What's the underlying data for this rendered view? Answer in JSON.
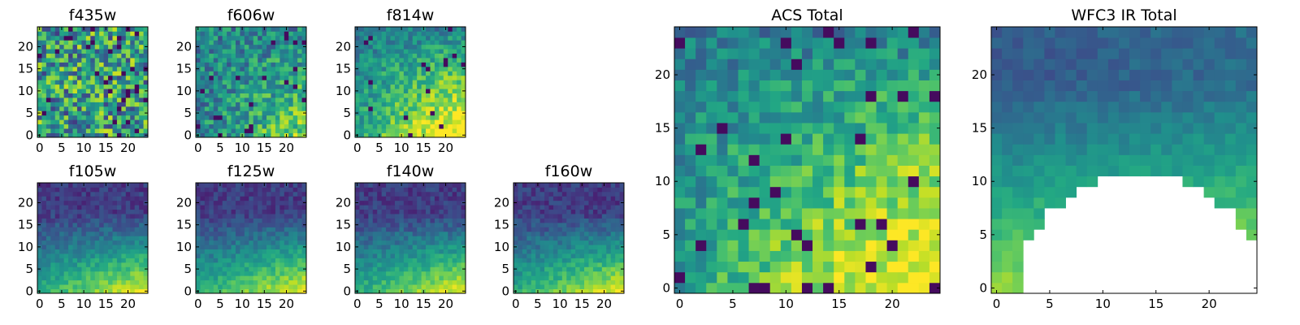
{
  "chart_data": [
    {
      "type": "heatmap",
      "title": "f435w",
      "grid": [
        25,
        25
      ],
      "xlim": [
        0,
        25
      ],
      "ylim": [
        0,
        25
      ],
      "xticks": [
        0,
        5,
        10,
        15,
        20
      ],
      "yticks": [
        0,
        5,
        10,
        15,
        20
      ],
      "colormap": "viridis",
      "pattern": "noisy"
    },
    {
      "type": "heatmap",
      "title": "f606w",
      "grid": [
        25,
        25
      ],
      "xlim": [
        0,
        25
      ],
      "ylim": [
        0,
        25
      ],
      "xticks": [
        0,
        5,
        10,
        15,
        20
      ],
      "yticks": [
        0,
        5,
        10,
        15,
        20
      ],
      "colormap": "viridis",
      "pattern": "noisy-bright-bottom-right"
    },
    {
      "type": "heatmap",
      "title": "f814w",
      "grid": [
        25,
        25
      ],
      "xlim": [
        0,
        25
      ],
      "ylim": [
        0,
        25
      ],
      "xticks": [
        0,
        5,
        10,
        15,
        20
      ],
      "yticks": [
        0,
        5,
        10,
        15,
        20
      ],
      "colormap": "viridis",
      "pattern": "bright-bottom-right"
    },
    {
      "type": "heatmap",
      "title": "f105w",
      "grid": [
        25,
        25
      ],
      "xlim": [
        0,
        25
      ],
      "ylim": [
        0,
        25
      ],
      "xticks": [
        0,
        5,
        10,
        15,
        20
      ],
      "yticks": [
        0,
        5,
        10,
        15,
        20
      ],
      "colormap": "viridis",
      "pattern": "smooth-bright-bottom"
    },
    {
      "type": "heatmap",
      "title": "f125w",
      "grid": [
        25,
        25
      ],
      "xlim": [
        0,
        25
      ],
      "ylim": [
        0,
        25
      ],
      "xticks": [
        0,
        5,
        10,
        15,
        20
      ],
      "yticks": [
        0,
        5,
        10,
        15,
        20
      ],
      "colormap": "viridis",
      "pattern": "smooth-bright-bottom"
    },
    {
      "type": "heatmap",
      "title": "f140w",
      "grid": [
        25,
        25
      ],
      "xlim": [
        0,
        25
      ],
      "ylim": [
        0,
        25
      ],
      "xticks": [
        0,
        5,
        10,
        15,
        20
      ],
      "yticks": [
        0,
        5,
        10,
        15,
        20
      ],
      "colormap": "viridis",
      "pattern": "smooth-bright-bottom"
    },
    {
      "type": "heatmap",
      "title": "f160w",
      "grid": [
        25,
        25
      ],
      "xlim": [
        0,
        25
      ],
      "ylim": [
        0,
        25
      ],
      "xticks": [
        0,
        5,
        10,
        15,
        20
      ],
      "yticks": [
        0,
        5,
        10,
        15,
        20
      ],
      "colormap": "viridis",
      "pattern": "smooth-bright-bottom"
    },
    {
      "type": "heatmap",
      "title": "ACS Total",
      "grid": [
        25,
        25
      ],
      "xlim": [
        0,
        25
      ],
      "ylim": [
        0,
        25
      ],
      "xticks": [
        0,
        5,
        10,
        15,
        20
      ],
      "yticks": [
        0,
        5,
        10,
        15,
        20
      ],
      "colormap": "viridis",
      "pattern": "bright-bottom-right"
    },
    {
      "type": "heatmap",
      "title": "WFC3 IR Total",
      "grid": [
        25,
        25
      ],
      "xlim": [
        0,
        25
      ],
      "ylim": [
        0,
        25
      ],
      "xticks": [
        0,
        5,
        10,
        15,
        20
      ],
      "yticks": [
        0,
        5,
        10,
        15,
        20
      ],
      "colormap": "viridis",
      "pattern": "masked-arch-bottom"
    }
  ]
}
